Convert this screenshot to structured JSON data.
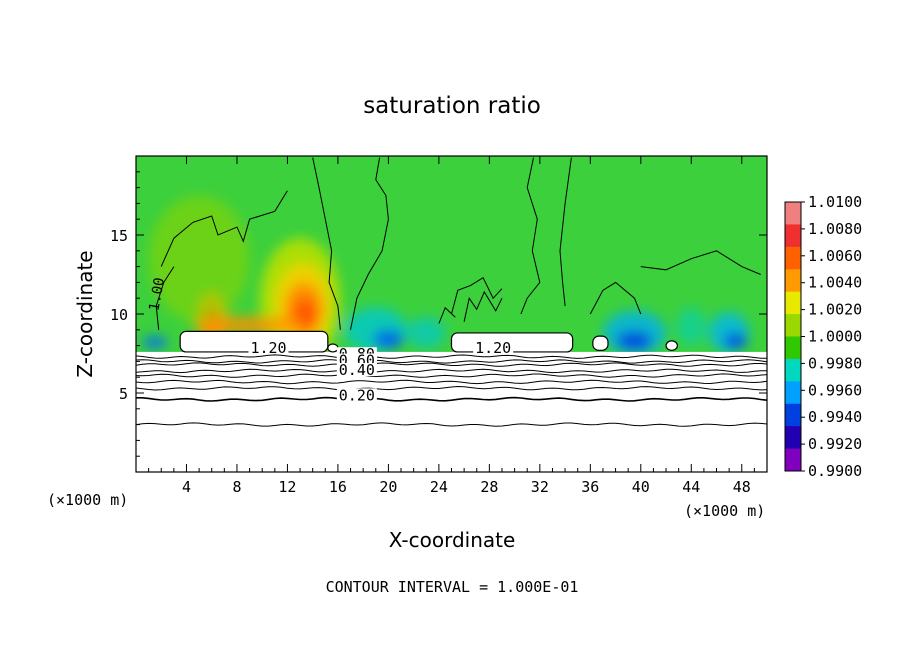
{
  "chart_data": {
    "type": "heatmap",
    "title": "saturation ratio",
    "xlabel": "X-coordinate",
    "ylabel": "Z-coordinate",
    "x_unit_note_left": "(×1000 m)",
    "x_unit_note_right": "(×1000 m)",
    "xlim": [
      0,
      50
    ],
    "ylim": [
      0,
      20
    ],
    "x_ticks": [
      4,
      8,
      12,
      16,
      20,
      24,
      28,
      32,
      36,
      40,
      44,
      48
    ],
    "y_ticks": [
      5,
      10,
      15
    ],
    "footer": "CONTOUR INTERVAL = 1.000E-01",
    "colorbar": {
      "labels": [
        "1.0100",
        "1.0080",
        "1.0060",
        "1.0040",
        "1.0020",
        "1.0000",
        "0.9980",
        "0.9960",
        "0.9940",
        "0.9920",
        "0.9900"
      ],
      "colors": [
        "#f08080",
        "#f03030",
        "#ff6000",
        "#ff9a00",
        "#e8e800",
        "#9ad800",
        "#30c800",
        "#00d8c0",
        "#00a0ff",
        "#0040e0",
        "#2000b0",
        "#8000c0"
      ]
    },
    "contour_labels": [
      {
        "text": "1.20",
        "x": 10.5,
        "z": 7.6
      },
      {
        "text": "1.20",
        "x": 28.3,
        "z": 7.6
      },
      {
        "text": "0.80",
        "x": 17.5,
        "z": 7.2
      },
      {
        "text": "0.60",
        "x": 17.5,
        "z": 6.8
      },
      {
        "text": "0.40",
        "x": 17.5,
        "z": 6.2
      },
      {
        "text": "0.20",
        "x": 17.5,
        "z": 4.6
      },
      {
        "text": "1.00",
        "x": 2.0,
        "z": 11.2
      }
    ],
    "lower_contour_levels_z": [
      3.0,
      4.6,
      5.3,
      5.7,
      6.1,
      6.4,
      6.8,
      7.0,
      7.3
    ]
  }
}
